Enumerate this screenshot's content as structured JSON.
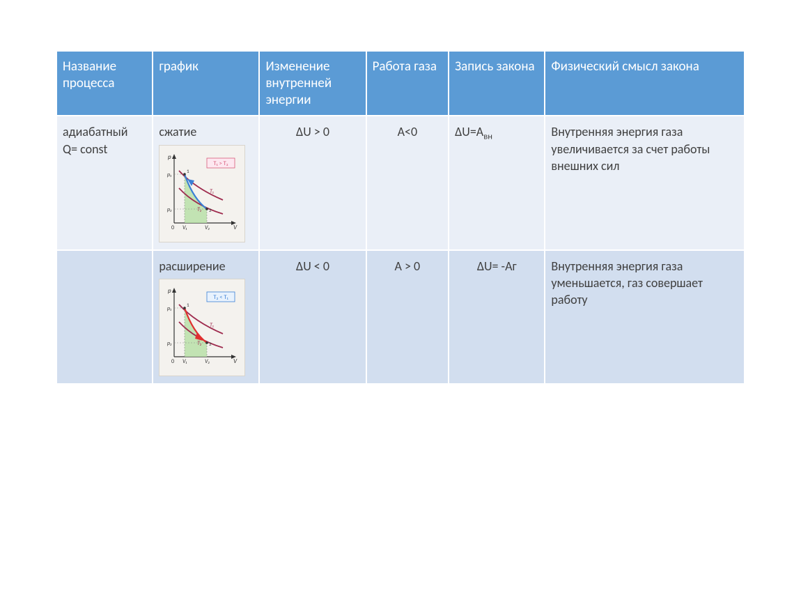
{
  "headers": [
    "Название процесса",
    "график",
    "Изменение внутренней энергии",
    "Работа газа",
    "Запись закона",
    "Физический смысл закона"
  ],
  "rows": [
    {
      "process_name": "адиабатный\n Q= const",
      "graph_label": "сжатие",
      "delta_u": "ΔU > 0",
      "work": "А<0",
      "law": "ΔU=Aвн",
      "meaning": "Внутренняя энергия газа увеличивается за счет работы внешних сил",
      "chart": {
        "condition": "T₁ > T₂",
        "condition_color": "#d85a7a",
        "condition_bg": "#fde8f0",
        "axis_color": "#333333",
        "isotherm_color": "#9e2b4e",
        "adiabat_color": "#3a7fd5",
        "fill_color": "#b8e0a8",
        "p1": 75,
        "p2": 28,
        "v1": 22,
        "v2": 55
      }
    },
    {
      "process_name": "",
      "graph_label": "расширение",
      "delta_u": "ΔU < 0",
      "work": "А > 0",
      "law": "ΔU= -Aг",
      "meaning": "Внутренняя энергия газа уменьшается, газ совершает работу",
      "chart": {
        "condition": "T₂ < T₁",
        "condition_color": "#3a7fd5",
        "condition_bg": "#e8f2fd",
        "axis_color": "#333333",
        "isotherm_color": "#9e2b4e",
        "adiabat_color": "#e03030",
        "fill_color": "#b8e0a8",
        "p1": 75,
        "p2": 28,
        "v1": 22,
        "v2": 55
      }
    }
  ],
  "style": {
    "header_bg": "#5b9bd5",
    "header_text": "#ffffff",
    "row_bg_even": "#d2deef",
    "row_bg_odd": "#eaeff7",
    "border_color": "#ffffff",
    "body_text": "#404040"
  }
}
